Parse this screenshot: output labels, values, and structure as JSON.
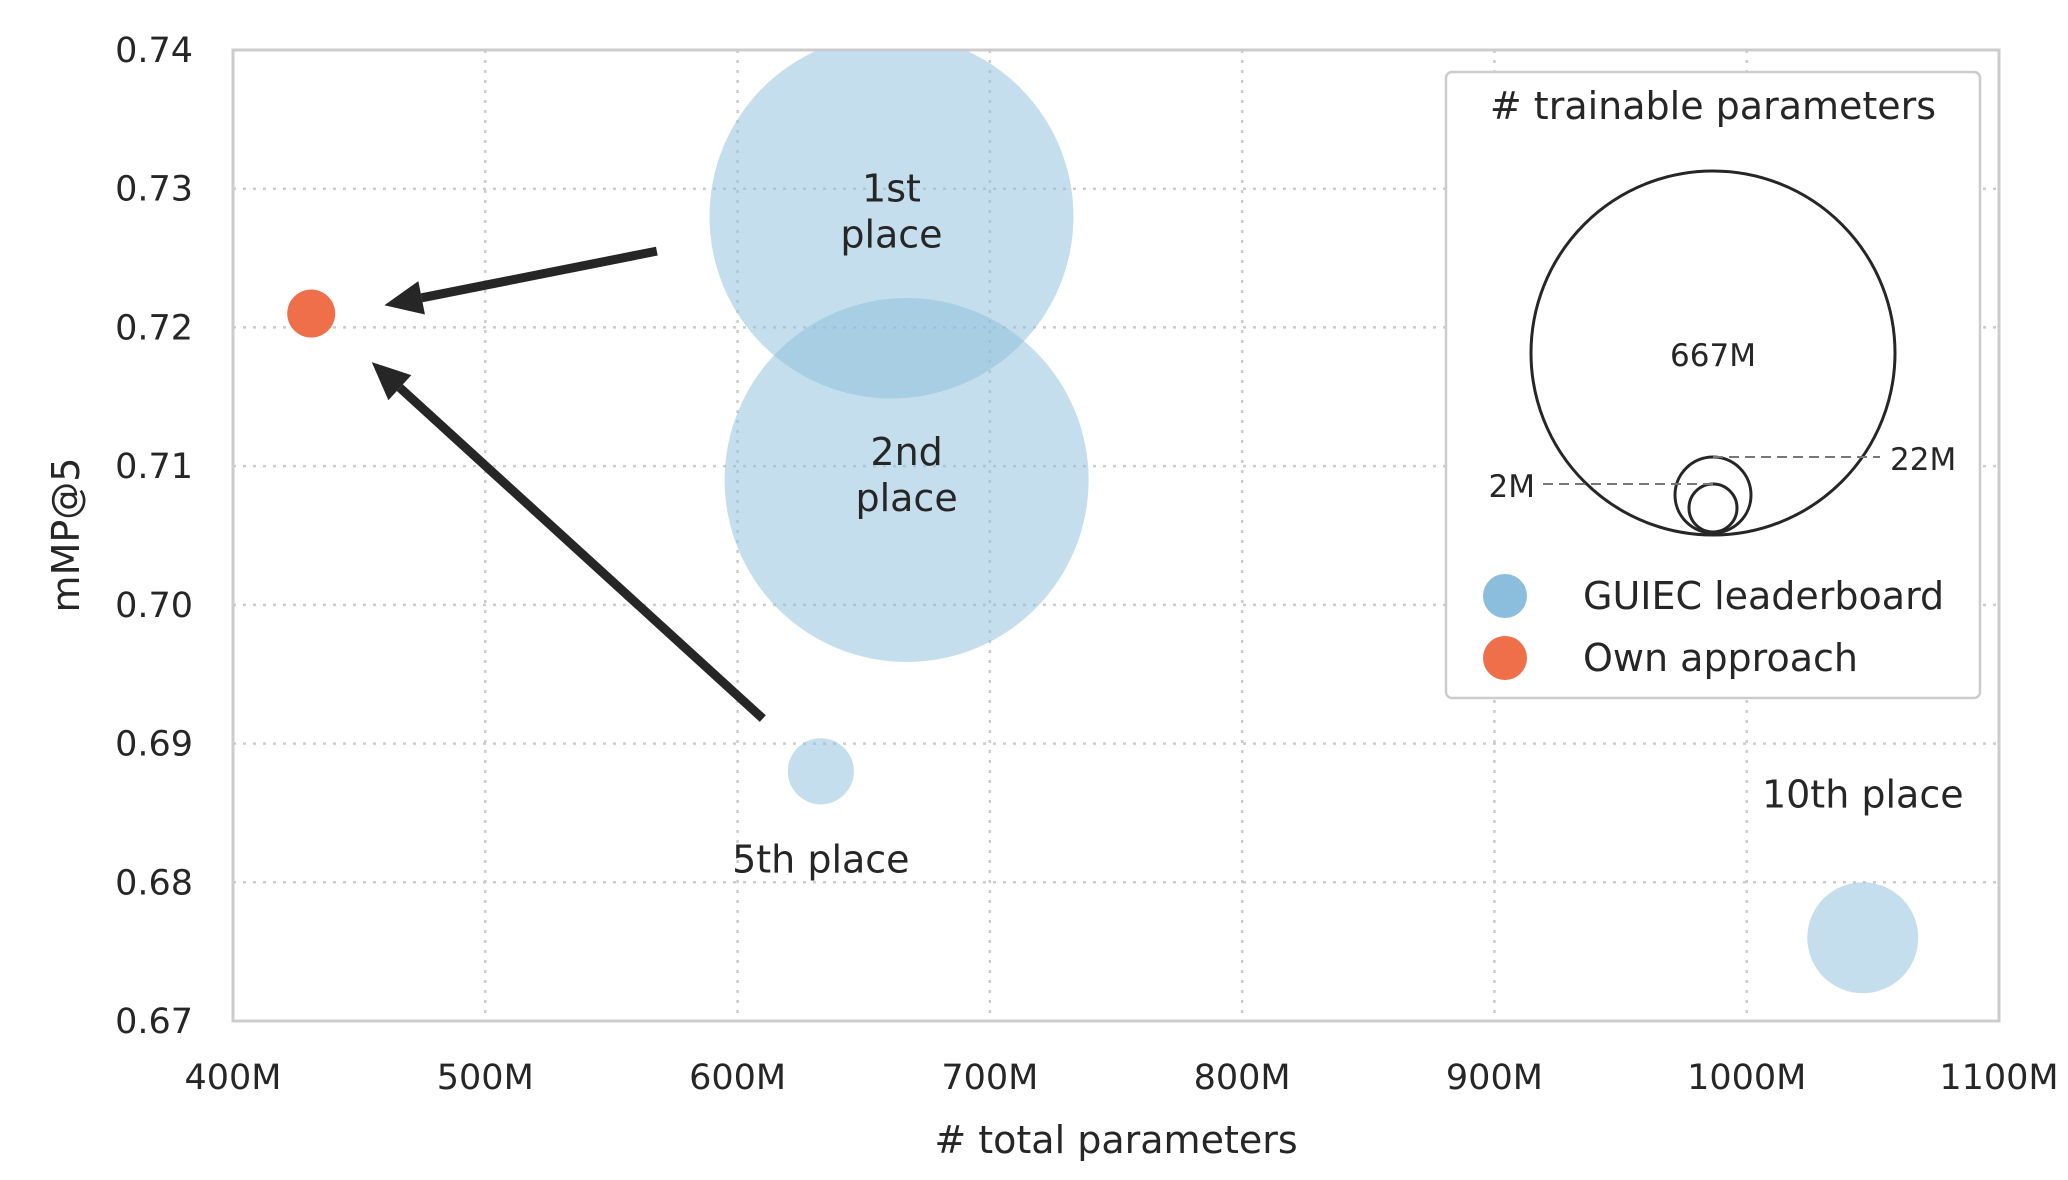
{
  "chart_data": {
    "type": "scatter",
    "xlabel": "# total parameters",
    "ylabel": "mMP@5",
    "xlim": [
      400,
      1100
    ],
    "ylim": [
      0.67,
      0.74
    ],
    "x_ticks": [
      400,
      500,
      600,
      700,
      800,
      900,
      1000,
      1100
    ],
    "x_tick_labels": [
      "400M",
      "500M",
      "600M",
      "700M",
      "800M",
      "900M",
      "1000M",
      "1100M"
    ],
    "y_ticks": [
      0.67,
      0.68,
      0.69,
      0.7,
      0.71,
      0.72,
      0.73,
      0.74
    ],
    "y_tick_labels": [
      "0.67",
      "0.68",
      "0.69",
      "0.70",
      "0.71",
      "0.72",
      "0.73",
      "0.74"
    ],
    "grid": true,
    "legend_position": "top-right",
    "series": [
      {
        "name": "GUIEC leaderboard",
        "color": "#8bbddc",
        "points": [
          {
            "label": "1st place",
            "label_lines": [
              "1st",
              "place"
            ],
            "x": 661,
            "y": 0.728,
            "trainable_params_M": 667
          },
          {
            "label": "2nd place",
            "label_lines": [
              "2nd",
              "place"
            ],
            "x": 667,
            "y": 0.709,
            "trainable_params_M": 667
          },
          {
            "label": "5th place",
            "label_lines": [
              "5th place"
            ],
            "x": 633,
            "y": 0.688,
            "trainable_params_M": 22
          },
          {
            "label": "10th place",
            "label_lines": [
              "10th place"
            ],
            "x": 1046,
            "y": 0.676,
            "trainable_params_M": 62
          }
        ]
      },
      {
        "name": "Own approach",
        "color": "#ee6f49",
        "points": [
          {
            "label": "",
            "label_lines": [],
            "x": 431,
            "y": 0.721,
            "trainable_params_M": 2
          }
        ]
      }
    ],
    "arrows": [
      {
        "from": [
          568,
          0.7255
        ],
        "to": [
          460,
          0.7216
        ]
      },
      {
        "from": [
          610,
          0.6918
        ],
        "to": [
          455,
          0.7175
        ]
      }
    ],
    "size_legend": {
      "title": "# trainable parameters",
      "sizes": [
        {
          "label": "667M",
          "value": 667
        },
        {
          "label": "22M",
          "value": 22
        },
        {
          "label": "2M",
          "value": 2
        }
      ]
    }
  }
}
